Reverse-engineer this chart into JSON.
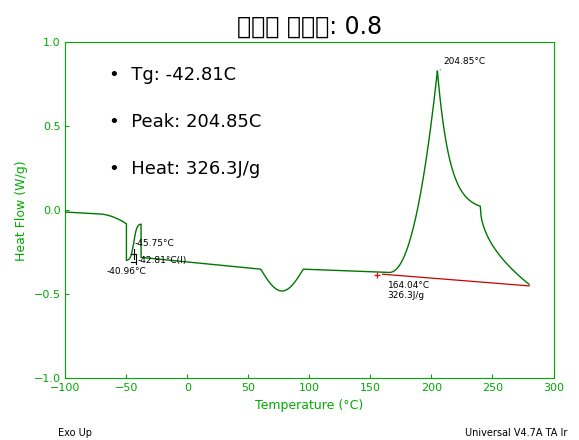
{
  "title": "경화제 당량비: 0.8",
  "xlabel": "Temperature (°C)",
  "ylabel": "Heat Flow (W/g)",
  "xlim": [
    -100,
    300
  ],
  "ylim": [
    -1.0,
    1.0
  ],
  "xticks": [
    -100,
    -50,
    0,
    50,
    100,
    150,
    200,
    250,
    300
  ],
  "yticks": [
    -1.0,
    -0.5,
    0.0,
    0.5,
    1.0
  ],
  "exo_label": "Exo Up",
  "universal_label": "Universal V4.7A TA Ir",
  "annotations": {
    "peak_temp": "204.85°C",
    "tg_step": "-45.75°C",
    "tg_midpoint": "-42.81°C(I)",
    "tg_onset": "-40.96°C",
    "heat_label": "164.04°C\n326.3J/g"
  },
  "bullet_text": [
    "Tg: -42.81C",
    "Peak: 204.85C",
    "Heat: 326.3J/g"
  ],
  "line_color_green": "#007700",
  "line_color_red": "#cc0000",
  "background_color": "#ffffff",
  "spine_color": "#00aa00",
  "tick_color": "#00aa00",
  "title_fontsize": 17,
  "axis_label_fontsize": 9,
  "tick_fontsize": 8,
  "annotation_fontsize": 6.5,
  "bullet_fontsize": 13
}
